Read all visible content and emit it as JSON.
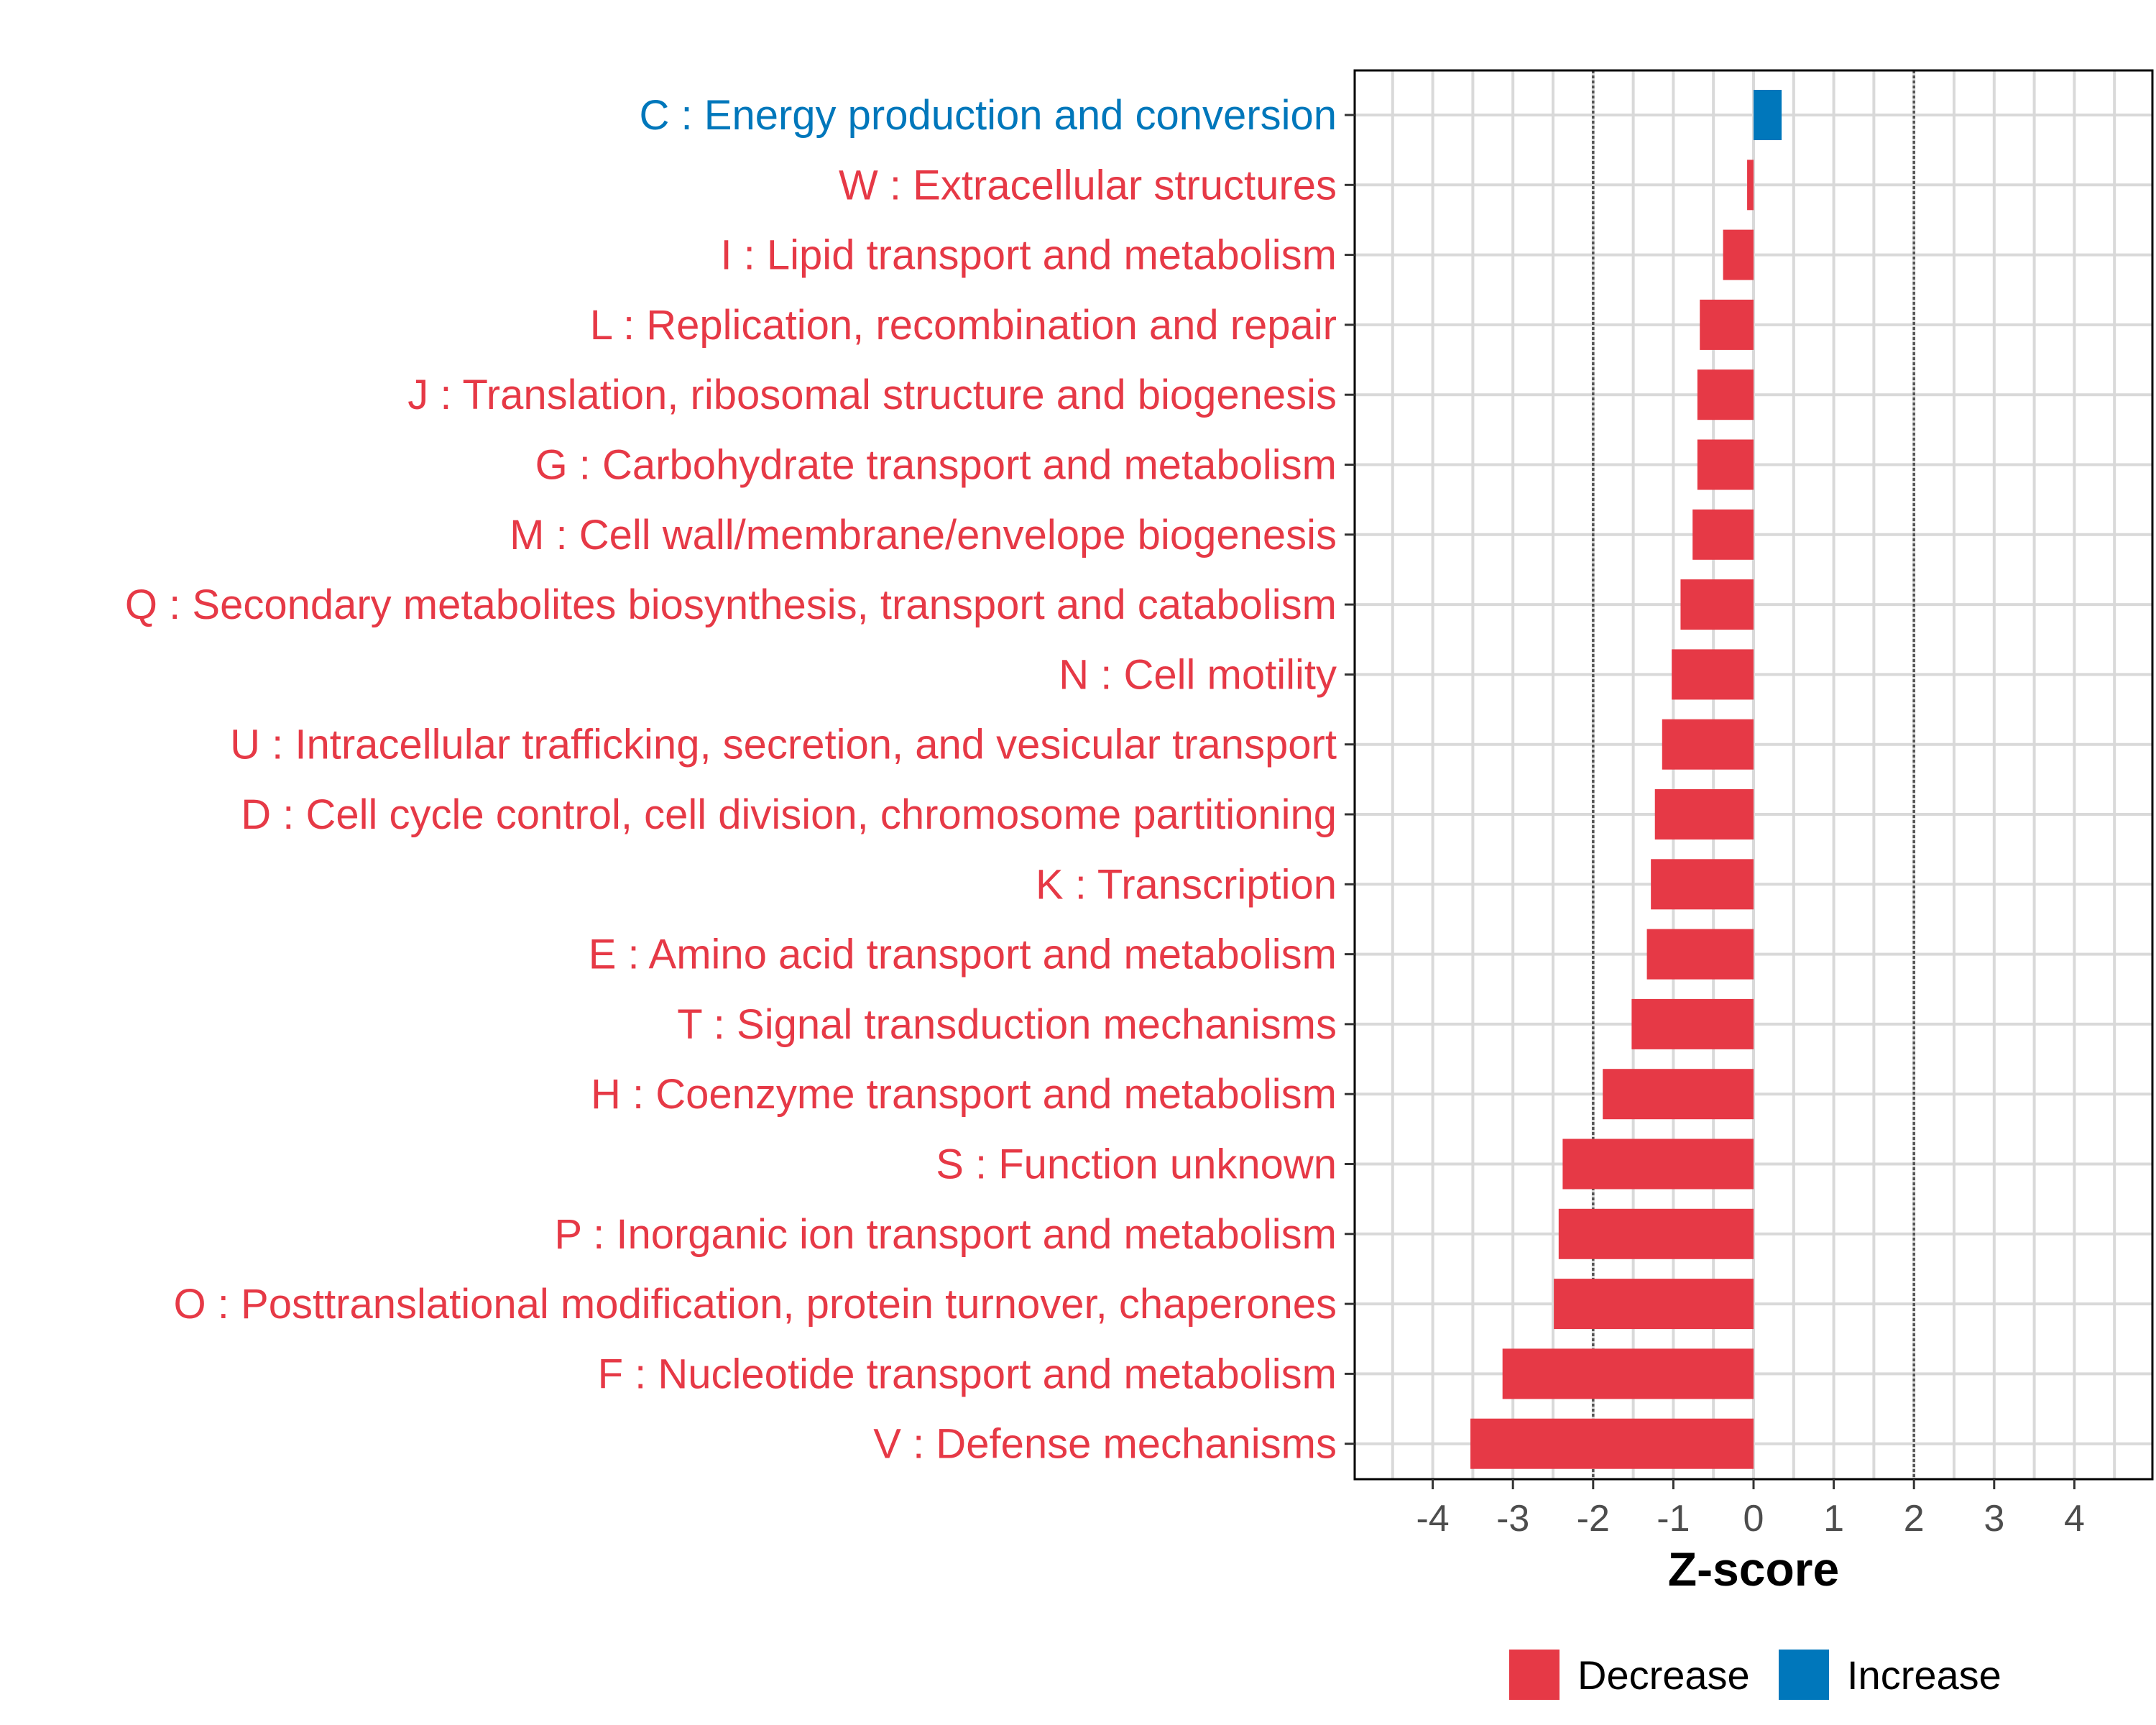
{
  "chart_data": {
    "type": "bar",
    "orientation": "horizontal",
    "title": "",
    "xlabel": "Z-score",
    "ylabel": "",
    "xlim": [
      -4.95,
      4.95
    ],
    "x_ticks": [
      -4,
      -3,
      -2,
      -1,
      0,
      1,
      2,
      3,
      4
    ],
    "reference_lines": [
      -2,
      2
    ],
    "grid": true,
    "legend_position": "bottom",
    "colors": {
      "Decrease": "#E63946",
      "Increase": "#0077BB"
    },
    "legend": [
      {
        "name": "Decrease",
        "color": "#E63946"
      },
      {
        "name": "Increase",
        "color": "#0077BB"
      }
    ],
    "categories": [
      "C : Energy production and conversion",
      "W : Extracellular structures",
      "I : Lipid transport and metabolism",
      "L : Replication, recombination and repair",
      "J : Translation, ribosomal structure and biogenesis",
      "G : Carbohydrate transport and metabolism",
      "M : Cell wall/membrane/envelope biogenesis",
      "Q : Secondary metabolites biosynthesis, transport and catabolism",
      "N : Cell motility",
      "U : Intracellular trafficking, secretion, and vesicular transport",
      "D : Cell cycle control, cell division, chromosome partitioning",
      "K : Transcription",
      "E : Amino acid transport and metabolism",
      "T : Signal transduction mechanisms",
      "H : Coenzyme transport and metabolism",
      "S : Function unknown",
      "P : Inorganic ion transport and metabolism",
      "O : Posttranslational modification, protein turnover, chaperones",
      "F : Nucleotide transport and metabolism",
      "V : Defense mechanisms"
    ],
    "values": [
      0.35,
      -0.08,
      -0.38,
      -0.67,
      -0.7,
      -0.7,
      -0.76,
      -0.91,
      -1.02,
      -1.14,
      -1.23,
      -1.28,
      -1.33,
      -1.52,
      -1.88,
      -2.38,
      -2.43,
      -2.49,
      -3.13,
      -3.53
    ],
    "direction": [
      "Increase",
      "Decrease",
      "Decrease",
      "Decrease",
      "Decrease",
      "Decrease",
      "Decrease",
      "Decrease",
      "Decrease",
      "Decrease",
      "Decrease",
      "Decrease",
      "Decrease",
      "Decrease",
      "Decrease",
      "Decrease",
      "Decrease",
      "Decrease",
      "Decrease",
      "Decrease"
    ]
  }
}
